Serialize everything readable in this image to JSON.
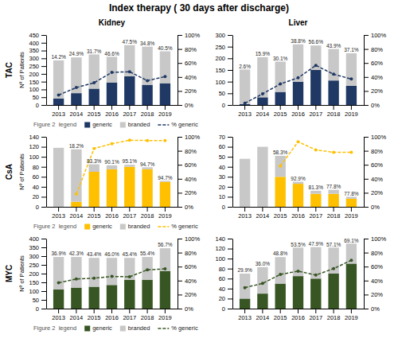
{
  "title": "Index therapy ( 30 days after discharge)",
  "chart_data": [
    {
      "type": "bar",
      "stacked": true,
      "title": "Kidney",
      "ylabel": "Nº of Patients",
      "annotations": [
        "TAC",
        "Figure 2  legend"
      ],
      "legend": "bottom",
      "categories": [
        "2013",
        "2014",
        "2015",
        "2016",
        "2017",
        "2018",
        "2019"
      ],
      "series": [
        {
          "name": "generic",
          "color": "#1f3864",
          "values": [
            42,
            76,
            105,
            145,
            185,
            130,
            140
          ]
        },
        {
          "name": "branded",
          "color": "#c8c8c8",
          "values": [
            245,
            230,
            220,
            165,
            200,
            245,
            205
          ]
        },
        {
          "name": "% generic",
          "type": "line",
          "axis": "y2",
          "color": "#1f3864",
          "line_style": "dashed",
          "marker": "circle",
          "data_labels": true,
          "values": [
            14.2,
            24.9,
            31.7,
            46.6,
            47.5,
            34.8,
            40.5
          ],
          "value_labels": [
            "14.2%",
            "24.9%",
            "31.7%",
            "46.6%",
            "47.5%",
            "34.8%",
            "40.5%"
          ]
        }
      ],
      "ylim": [
        0,
        450
      ],
      "yticks": [
        0,
        50,
        100,
        150,
        200,
        250,
        300,
        350,
        400,
        450
      ],
      "y2lim": [
        0,
        100
      ],
      "y2ticks": [
        {
          "value": 0,
          "label": "0%"
        },
        {
          "value": 20,
          "label": "20%"
        },
        {
          "value": 40,
          "label": "40%"
        },
        {
          "value": 60,
          "label": "60%"
        },
        {
          "value": 80,
          "label": "80%"
        },
        {
          "value": 100,
          "label": "100%"
        }
      ]
    },
    {
      "type": "bar",
      "stacked": true,
      "title": "Liver",
      "categories": [
        "2013",
        "2014",
        "2015",
        "2016",
        "2017",
        "2018",
        "2019"
      ],
      "series": [
        {
          "color": "#1f3864",
          "values": [
            4,
            33,
            56,
            100,
            150,
            105,
            82
          ]
        },
        {
          "color": "#c8c8c8",
          "values": [
            148,
            172,
            130,
            160,
            105,
            135,
            140
          ]
        },
        {
          "type": "line",
          "axis": "y2",
          "color": "#1f3864",
          "line_style": "dashed",
          "marker": "circle",
          "data_labels": true,
          "values": [
            2.6,
            15.9,
            30.1,
            38.8,
            56.6,
            43.9,
            37.1
          ],
          "value_labels": [
            "2.6%",
            "15.9%",
            "30.1%",
            "38.8%",
            "56.6%",
            "43.9%",
            "37.1%"
          ]
        }
      ],
      "ylim": [
        0,
        300
      ],
      "yticks": [
        0,
        50,
        100,
        150,
        200,
        250,
        300
      ],
      "y2lim": [
        0,
        100
      ],
      "y2ticks": [
        {
          "value": 0,
          "label": "0%"
        },
        {
          "value": 20,
          "label": "20%"
        },
        {
          "value": 40,
          "label": "40%"
        },
        {
          "value": 60,
          "label": "60%"
        },
        {
          "value": 80,
          "label": "80%"
        },
        {
          "value": 100,
          "label": "100%"
        }
      ]
    },
    {
      "type": "bar",
      "stacked": true,
      "ylabel": "Nº of Patients",
      "annotations": [
        "CsA",
        "Figure 2  legend"
      ],
      "legend": "bottom",
      "categories": [
        "2013",
        "2014",
        "2015",
        "2016",
        "2017",
        "2018",
        "2019"
      ],
      "series": [
        {
          "name": "generic",
          "color": "#ffc000",
          "values": [
            0,
            10,
            70,
            75,
            80,
            75,
            50
          ]
        },
        {
          "name": "branded",
          "color": "#c8c8c8",
          "values": [
            118,
            105,
            15,
            8,
            4,
            4,
            2
          ]
        },
        {
          "name": "% generic",
          "type": "line",
          "axis": "y2",
          "color": "#ffc000",
          "line_style": "dashed",
          "marker": "circle",
          "data_labels": true,
          "values": [
            null,
            18.2,
            83.3,
            90.1,
            95.1,
            94.7,
            94.7
          ],
          "value_labels": [
            null,
            "18.2%",
            "83.3%",
            "90.1%",
            "95.1%",
            "94.7%",
            "94.7%"
          ]
        }
      ],
      "ylim": [
        0,
        140
      ],
      "yticks": [
        0,
        20,
        40,
        60,
        80,
        100,
        120,
        140
      ],
      "y2lim": [
        0,
        100
      ],
      "y2ticks": [
        {
          "value": 0,
          "label": "0%"
        },
        {
          "value": 20,
          "label": "20%"
        },
        {
          "value": 40,
          "label": "40%"
        },
        {
          "value": 60,
          "label": "60%"
        },
        {
          "value": 80,
          "label": "80%"
        },
        {
          "value": 100,
          "label": "100%"
        }
      ]
    },
    {
      "type": "bar",
      "stacked": true,
      "categories": [
        "2013",
        "2014",
        "2015",
        "2016",
        "2017",
        "2018",
        "2019"
      ],
      "series": [
        {
          "color": "#ffc000",
          "values": [
            0,
            0,
            30,
            23,
            13,
            13,
            8
          ]
        },
        {
          "color": "#c8c8c8",
          "values": [
            48,
            60,
            21,
            2,
            3,
            4,
            2
          ]
        },
        {
          "type": "line",
          "axis": "y2",
          "color": "#ffc000",
          "line_style": "dashed",
          "marker": "circle",
          "data_labels": true,
          "values": [
            null,
            null,
            58.3,
            92.9,
            81.3,
            77.8,
            77.8
          ],
          "value_labels": [
            null,
            null,
            "58.3%",
            "92.9%",
            "81.3%",
            "77.8%",
            "77.8%"
          ]
        }
      ],
      "ylim": [
        0,
        70
      ],
      "yticks": [
        0,
        10,
        20,
        30,
        40,
        50,
        60,
        70
      ],
      "y2lim": [
        0,
        100
      ],
      "y2ticks": [
        {
          "value": 0,
          "label": "0%"
        },
        {
          "value": 20,
          "label": "20%"
        },
        {
          "value": 40,
          "label": "40%"
        },
        {
          "value": 60,
          "label": "60%"
        },
        {
          "value": 80,
          "label": "80%"
        },
        {
          "value": 100,
          "label": "100%"
        }
      ]
    },
    {
      "type": "bar",
      "stacked": true,
      "ylabel": "Nº of Patients",
      "annotations": [
        "MYC",
        "Figure 2  legend"
      ],
      "legend": "bottom",
      "categories": [
        "2013",
        "2014",
        "2015",
        "2016",
        "2017",
        "2018",
        "2019"
      ],
      "series": [
        {
          "name": "generic",
          "color": "#375623",
          "values": [
            110,
            120,
            125,
            135,
            165,
            165,
            215
          ]
        },
        {
          "name": "branded",
          "color": "#c8c8c8",
          "values": [
            185,
            175,
            165,
            155,
            125,
            130,
            130
          ]
        },
        {
          "name": "% generic",
          "type": "line",
          "axis": "y2",
          "color": "#375623",
          "line_style": "dashed",
          "marker": "circle",
          "data_labels": true,
          "values": [
            36.9,
            42.3,
            43.4,
            46.0,
            45.4,
            55.4,
            56.7
          ],
          "value_labels": [
            "36.9%",
            "42.3%",
            "43.4%",
            "46.0%",
            "45.4%",
            "55.4%",
            "56.7%"
          ]
        }
      ],
      "ylim": [
        0,
        400
      ],
      "yticks": [
        0,
        50,
        100,
        150,
        200,
        250,
        300,
        350,
        400
      ],
      "y2lim": [
        0,
        100
      ],
      "y2ticks": [
        {
          "value": 0,
          "label": "0%"
        },
        {
          "value": 20,
          "label": "20%"
        },
        {
          "value": 40,
          "label": "40%"
        },
        {
          "value": 60,
          "label": "60%"
        },
        {
          "value": 80,
          "label": "80%"
        },
        {
          "value": 100,
          "label": "100%"
        }
      ]
    },
    {
      "type": "bar",
      "stacked": true,
      "categories": [
        "2013",
        "2014",
        "2015",
        "2016",
        "2017",
        "2018",
        "2019"
      ],
      "series": [
        {
          "color": "#375623",
          "values": [
            20,
            30,
            50,
            65,
            60,
            70,
            90
          ]
        },
        {
          "color": "#c8c8c8",
          "values": [
            50,
            53,
            53,
            57,
            63,
            52,
            40
          ]
        },
        {
          "type": "line",
          "axis": "y2",
          "color": "#375623",
          "line_style": "dashed",
          "marker": "circle",
          "data_labels": true,
          "values": [
            29.9,
            36.0,
            48.8,
            53.5,
            47.9,
            57.1,
            69.1
          ],
          "value_labels": [
            "29.9%",
            "36.0%",
            "48.8%",
            "53.5%",
            "47.9%",
            "57.1%",
            "69.1%"
          ]
        }
      ],
      "ylim": [
        0,
        140
      ],
      "yticks": [
        0,
        20,
        40,
        60,
        80,
        100,
        120,
        140
      ],
      "y2lim": [
        0,
        100
      ],
      "y2ticks": [
        {
          "value": 0,
          "label": "0%"
        },
        {
          "value": 20,
          "label": "20%"
        },
        {
          "value": 40,
          "label": "40%"
        },
        {
          "value": 60,
          "label": "60%"
        },
        {
          "value": 80,
          "label": "80%"
        },
        {
          "value": 100,
          "label": "100%"
        }
      ]
    }
  ]
}
